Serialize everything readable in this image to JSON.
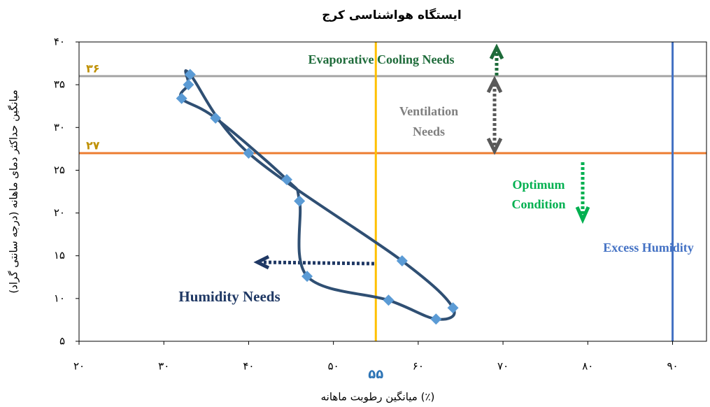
{
  "chart_data": {
    "type": "scatter",
    "title": "ایستگاه هواشناسی کرج",
    "x_label": "میانگین رطوبت ماهانه (٪)",
    "y_label": "میانگین حداکثر دمای ماهانه (درجه سانتی گراد)",
    "xlim": [
      20,
      94
    ],
    "ylim": [
      5,
      40
    ],
    "xticks": [
      {
        "value": 20,
        "label": "۲۰"
      },
      {
        "value": 30,
        "label": "۳۰"
      },
      {
        "value": 40,
        "label": "۴۰"
      },
      {
        "value": 50,
        "label": "۵۰"
      },
      {
        "value": 60,
        "label": "۶۰"
      },
      {
        "value": 70,
        "label": "۷۰"
      },
      {
        "value": 80,
        "label": "۸۰"
      },
      {
        "value": 90,
        "label": "۹۰"
      }
    ],
    "yticks": [
      {
        "value": 5,
        "label": "۵"
      },
      {
        "value": 10,
        "label": "۱۰"
      },
      {
        "value": 15,
        "label": "۱۵"
      },
      {
        "value": 20,
        "label": "۲۰"
      },
      {
        "value": 25,
        "label": "۲۵"
      },
      {
        "value": 30,
        "label": "۳۰"
      },
      {
        "value": 35,
        "label": "۳۵"
      },
      {
        "value": 40,
        "label": "۴۰"
      }
    ],
    "series": [
      {
        "line_color": "#2f4f73",
        "color": "#5b9bd5",
        "x": [
          62.1,
          56.5,
          46.9,
          46.0,
          44.5,
          36.1,
          32.1,
          32.9,
          33.1,
          40.0,
          58.1,
          64.1
        ],
        "values": [
          7.6,
          9.8,
          12.6,
          21.4,
          23.9,
          31.1,
          33.4,
          35.0,
          36.2,
          27.0,
          14.4,
          8.9
        ]
      }
    ],
    "reference_lines": [
      {
        "axis": "y",
        "value": 36,
        "label": "۳۶",
        "color": "#a5a5a5",
        "label_color": "#bf9000"
      },
      {
        "axis": "y",
        "value": 27,
        "label": "۲۷",
        "color": "#ed7d31",
        "label_color": "#bf9000"
      },
      {
        "axis": "x",
        "value": 55,
        "label": "۵۵",
        "color": "#ffc000",
        "label_color": "#2e75b6"
      },
      {
        "axis": "x",
        "value": 90,
        "color": "#4472c4"
      }
    ],
    "annotations": [
      "Evaporative Cooling Needs",
      "Ventilation",
      "Needs",
      "Optimum",
      "Condition",
      "Excess Humidity",
      "Humidity Needs"
    ]
  }
}
